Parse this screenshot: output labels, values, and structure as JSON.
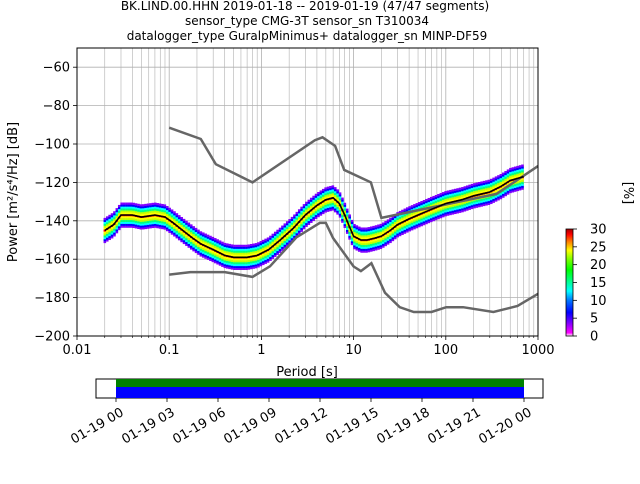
{
  "chart_data": {
    "type": "line",
    "title_lines": [
      "BK.LIND.00.HHN   2019-01-18 -- 2019-01-19  (47/47 segments)",
      "sensor_type CMG-3T sensor_sn T310034",
      "datalogger_type GuralpMinimus+ datalogger_sn MINP-DF59"
    ],
    "xlabel": "Period [s]",
    "ylabel": "Power [m²/s⁴/Hz] [dB]",
    "xscale": "log",
    "xlim": [
      0.01,
      1000
    ],
    "ylim": [
      -200,
      -50
    ],
    "xticks": [
      {
        "v": 0.01,
        "label": "0.01"
      },
      {
        "v": 0.1,
        "label": "0.1"
      },
      {
        "v": 1,
        "label": "1"
      },
      {
        "v": 10,
        "label": "10"
      },
      {
        "v": 100,
        "label": "100"
      },
      {
        "v": 1000,
        "label": "1000"
      }
    ],
    "yticks": [
      -200,
      -180,
      -160,
      -140,
      -120,
      -100,
      -80,
      -60
    ],
    "grid": true,
    "noise_models": [
      {
        "name": "NHNM",
        "x": [
          0.1,
          0.22,
          0.32,
          0.8,
          3.8,
          4.6,
          6.3,
          7.9,
          15.4,
          20,
          354.8,
          1000
        ],
        "y": [
          -91.5,
          -97.4,
          -110.5,
          -120,
          -98,
          -96.5,
          -101,
          -113.5,
          -120,
          -138.5,
          -126,
          -111.5
        ]
      },
      {
        "name": "NLNM",
        "x": [
          0.1,
          0.17,
          0.4,
          0.8,
          1.24,
          2.4,
          4.3,
          5.0,
          6.0,
          10,
          12,
          15.6,
          21.9,
          31.6,
          45,
          70,
          101,
          154,
          328,
          600,
          1000
        ],
        "y": [
          -168,
          -166.7,
          -166.7,
          -169.2,
          -163.7,
          -148.6,
          -141.1,
          -141.1,
          -149,
          -163.8,
          -166.2,
          -162.1,
          -177.5,
          -185,
          -187.5,
          -187.5,
          -185,
          -185,
          -187.5,
          -184.4,
          -178
        ]
      }
    ],
    "mode": {
      "x": [
        0.02,
        0.025,
        0.03,
        0.04,
        0.05,
        0.07,
        0.09,
        0.11,
        0.14,
        0.18,
        0.22,
        0.3,
        0.4,
        0.5,
        0.7,
        0.9,
        1.2,
        1.6,
        2.2,
        3,
        4,
        5,
        6,
        7,
        8,
        9,
        10,
        12,
        14,
        17,
        20,
        25,
        30,
        40,
        50,
        70,
        100,
        150,
        200,
        300,
        400,
        500,
        700
      ],
      "y": [
        -145,
        -142,
        -137,
        -137,
        -138,
        -137,
        -138,
        -141,
        -145,
        -149,
        -152,
        -155,
        -158,
        -159,
        -159,
        -158,
        -155,
        -150,
        -144,
        -137,
        -132,
        -129,
        -128,
        -131,
        -137,
        -143,
        -148,
        -150,
        -150,
        -149,
        -148,
        -145,
        -142,
        -139,
        -137,
        -134,
        -131,
        -129,
        -127,
        -125,
        -122,
        -119,
        -117
      ]
    },
    "psd_spread_dB": 6,
    "colorbar": {
      "label": "[%]",
      "ticks": [
        0,
        5,
        10,
        15,
        20,
        25,
        30
      ],
      "range": [
        0,
        30
      ]
    },
    "coverage": {
      "ticks": [
        "01-19 00",
        "01-19 03",
        "01-19 06",
        "01-19 09",
        "01-19 12",
        "01-19 15",
        "01-19 18",
        "01-19 21",
        "01-20 00"
      ],
      "data_color": "#008000",
      "psd_color": "#0000ff",
      "frame_start": "01-18 22:30",
      "frame_end": "01-20 01:30"
    },
    "colors": {
      "noise_model": "#666666",
      "mode_line": "#000000",
      "grid": "#b0b0b0"
    }
  }
}
